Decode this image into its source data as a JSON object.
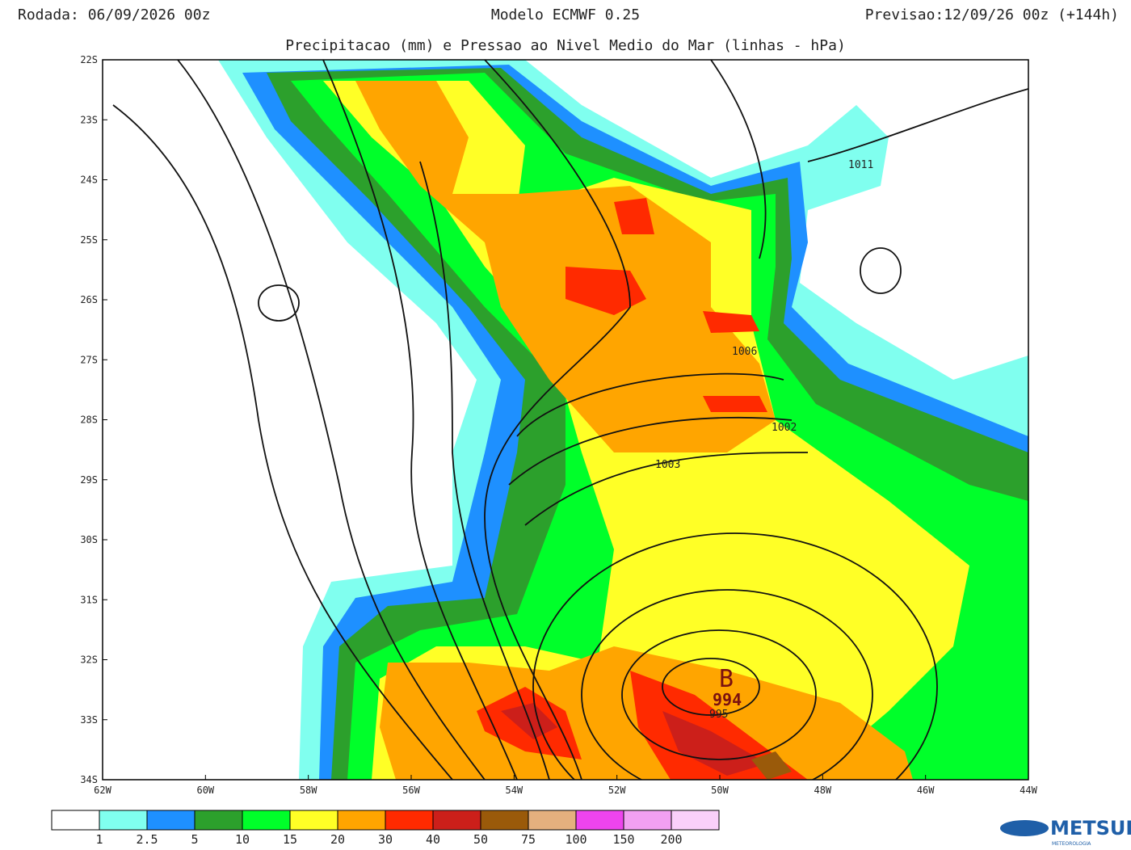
{
  "header": {
    "run": "Rodada: 06/09/2026 00z",
    "model": "Modelo ECMWF 0.25",
    "forecast": "Previsao:12/09/26 00z (+144h)",
    "subtitle": "Precipitacao (mm) e Pressao ao Nivel Medio do Mar (linhas - hPa)"
  },
  "map": {
    "xlim": [
      -62,
      -44
    ],
    "ylim": [
      -34,
      -22
    ],
    "xticks": [
      {
        "value": -62,
        "label": "62W"
      },
      {
        "value": -60,
        "label": "60W"
      },
      {
        "value": -58,
        "label": "58W"
      },
      {
        "value": -56,
        "label": "56W"
      },
      {
        "value": -54,
        "label": "54W"
      },
      {
        "value": -52,
        "label": "52W"
      },
      {
        "value": -50,
        "label": "50W"
      },
      {
        "value": -48,
        "label": "48W"
      },
      {
        "value": -46,
        "label": "46W"
      },
      {
        "value": -44,
        "label": "44W"
      }
    ],
    "yticks": [
      {
        "value": -22,
        "label": "22S"
      },
      {
        "value": -23,
        "label": "23S"
      },
      {
        "value": -24,
        "label": "24S"
      },
      {
        "value": -25,
        "label": "25S"
      },
      {
        "value": -26,
        "label": "26S"
      },
      {
        "value": -27,
        "label": "27S"
      },
      {
        "value": -28,
        "label": "28S"
      },
      {
        "value": -29,
        "label": "29S"
      },
      {
        "value": -30,
        "label": "30S"
      },
      {
        "value": -31,
        "label": "31S"
      },
      {
        "value": -32,
        "label": "32S"
      },
      {
        "value": -33,
        "label": "33S"
      },
      {
        "value": -34,
        "label": "34S"
      }
    ],
    "isobar_labels": [
      "1011",
      "1006",
      "1002",
      "1003",
      "995"
    ],
    "low_marker": "B",
    "low_value": "994"
  },
  "colorbar": {
    "colors": [
      "#ffffff",
      "#80ffef",
      "#1e90ff",
      "#2ca02c",
      "#00ff2a",
      "#ffff26",
      "#ffa500",
      "#ff2a00",
      "#cc1f1a",
      "#9a5a0a",
      "#e5b07e",
      "#ee44ee",
      "#f2a0f2",
      "#fad0fa"
    ],
    "labels": [
      1,
      2.5,
      5,
      10,
      15,
      20,
      30,
      40,
      50,
      75,
      100,
      150,
      200
    ]
  },
  "logo": {
    "name": "METSUL",
    "tagline": "METEOROLOGIA"
  }
}
